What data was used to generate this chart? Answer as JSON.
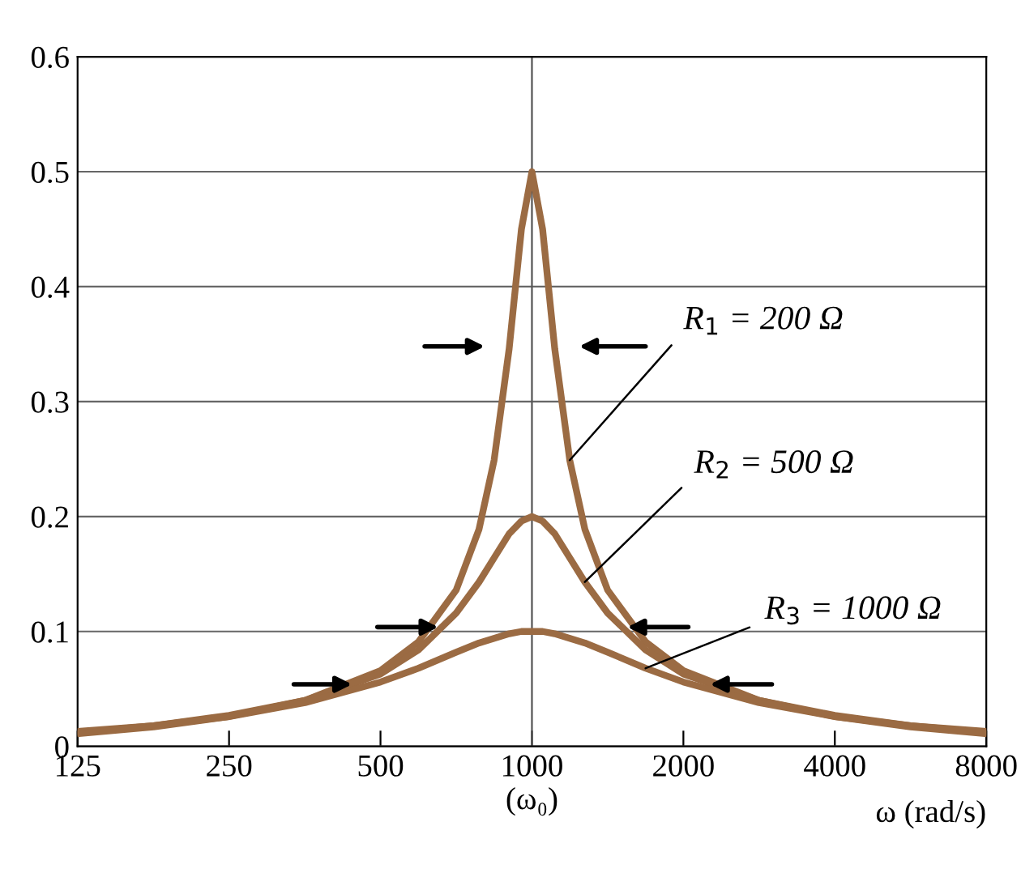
{
  "chart_data": {
    "type": "line",
    "xlabel": "ω (rad/s)",
    "log": "x",
    "x": [
      125,
      177,
      250,
      354,
      500,
      595,
      707,
      785,
      841,
      901,
      953,
      1000,
      1050,
      1110,
      1189,
      1274,
      1414,
      1682,
      2000,
      2828,
      4000,
      5657,
      8000
    ],
    "series": [
      {
        "color": "#9b6b43",
        "values": [
          0.013,
          0.018,
          0.027,
          0.04,
          0.066,
          0.091,
          0.136,
          0.189,
          0.249,
          0.346,
          0.45,
          0.5,
          0.45,
          0.346,
          0.249,
          0.189,
          0.136,
          0.091,
          0.066,
          0.04,
          0.027,
          0.018,
          0.013
        ]
      },
      {
        "color": "#9b6b43",
        "values": [
          0.012,
          0.018,
          0.026,
          0.04,
          0.063,
          0.084,
          0.116,
          0.143,
          0.164,
          0.185,
          0.196,
          0.2,
          0.196,
          0.185,
          0.164,
          0.143,
          0.116,
          0.084,
          0.063,
          0.04,
          0.026,
          0.018,
          0.012
        ]
      },
      {
        "color": "#9b6b43",
        "values": [
          0.011,
          0.017,
          0.026,
          0.038,
          0.056,
          0.068,
          0.082,
          0.09,
          0.094,
          0.098,
          0.1,
          0.1,
          0.1,
          0.098,
          0.094,
          0.09,
          0.082,
          0.068,
          0.056,
          0.038,
          0.026,
          0.017,
          0.011
        ]
      }
    ],
    "xlim": [
      125,
      8000
    ],
    "ylim": [
      0,
      0.6
    ],
    "xticks": [
      125,
      250,
      500,
      {
        "value": 1000,
        "label": "1000\n(ω₀)"
      },
      2000,
      4000,
      8000
    ],
    "yticks": [
      0,
      0.1,
      0.2,
      0.3,
      0.4,
      0.5,
      0.6
    ],
    "grid": "y",
    "ref_lines": [
      {
        "axis": "x",
        "value": 1000,
        "color": "#555555"
      }
    ],
    "line_style": "solid",
    "marker": "none",
    "legend": false,
    "annotations": [
      {
        "text": "R$_{1}$ = 200 Ω",
        "x": 1189,
        "y": 0.249
      },
      {
        "text": "R$_{2}$ = 500 Ω",
        "x": 1274,
        "y": 0.143
      },
      {
        "text": "R$_{3}$ = 1000 Ω",
        "x": 1682,
        "y": 0.068
      }
    ]
  }
}
